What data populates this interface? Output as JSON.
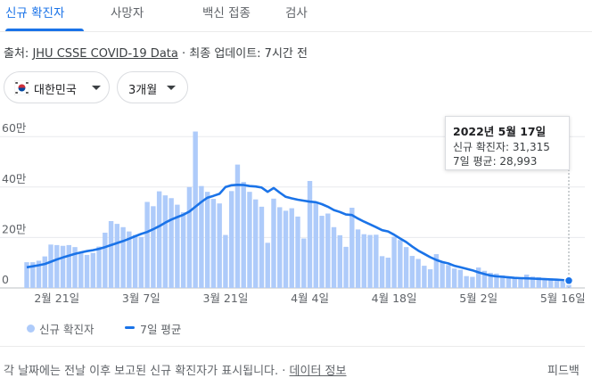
{
  "tabs": [
    {
      "label": "신규 확진자",
      "active": true
    },
    {
      "label": "사망자",
      "active": false
    },
    {
      "label": "백신 접종",
      "active": false
    },
    {
      "label": "검사",
      "active": false
    }
  ],
  "source": {
    "prefix": "출처: ",
    "link_text": "JHU CSSE COVID-19 Data",
    "separator": " · ",
    "updated": "최종 업데이트: 7시간 전"
  },
  "filters": {
    "country": {
      "label": "대한민국",
      "icon": "south-korea-flag-icon"
    },
    "range": {
      "label": "3개월",
      "icon": "caret-down-icon"
    }
  },
  "tooltip": {
    "date": "2022년 5월 17일",
    "cases_line": "신규 확진자: 31,315",
    "avg_line": "7일 평균: 28,993"
  },
  "legend": {
    "cases": "신규 확진자",
    "avg": "7일 평균"
  },
  "footer": {
    "note": "각 날짜에는 전날 이후 보고된 신규 확진자가 표시됩니다.",
    "separator": " · ",
    "info_link": "데이터 정보",
    "feedback": "피드백"
  },
  "colors": {
    "accent": "#1a73e8",
    "bar": "#aecbfa",
    "grid": "#e8eaed"
  },
  "chart_data": {
    "type": "bar",
    "x_start": "2022-02-16",
    "x_end": "2022-05-17",
    "ylim": [
      0,
      620000
    ],
    "y_ticks": [
      0,
      200000,
      400000,
      600000
    ],
    "y_tick_labels": [
      "0",
      "20만",
      "40만",
      "60만"
    ],
    "x_tick_labels": [
      "2월 21일",
      "3월 7일",
      "3월 21일",
      "4월 4일",
      "4월 18일",
      "5월 2일",
      "5월 16일"
    ],
    "grid": true,
    "series": [
      {
        "name": "신규 확진자",
        "values": [
          102000,
          102000,
          108000,
          125000,
          172000,
          170000,
          167000,
          170000,
          162000,
          143000,
          131000,
          139000,
          164000,
          219000,
          265000,
          254000,
          241000,
          224000,
          210000,
          202000,
          341000,
          324000,
          383000,
          367000,
          356000,
          330000,
          300000,
          400000,
          620000,
          404000,
          381000,
          353000,
          335000,
          210000,
          384000,
          489000,
          420000,
          381000,
          351000,
          322000,
          179000,
          354000,
          320000,
          306000,
          316000,
          283000,
          196000,
          424000,
          336000,
          286000,
          295000,
          241000,
          209000,
          163000,
          318000,
          232000,
          213000,
          210000,
          211000,
          126000,
          120000,
          203000,
          190000,
          162000,
          127000,
          115000,
          88000,
          74000,
          134000,
          104000,
          91000,
          77000,
          72000,
          47000,
          44000,
          81000,
          68000,
          60000,
          57000,
          50000,
          40000,
          37000,
          40000,
          53000,
          45000,
          43000,
          36000,
          38000,
          28000,
          25000,
          31315
        ]
      },
      {
        "name": "7일 평균",
        "values": [
          82000,
          86000,
          90000,
          95000,
          104000,
          113000,
          121000,
          128000,
          135000,
          141000,
          146000,
          150000,
          155000,
          162000,
          170000,
          178000,
          186000,
          195000,
          205000,
          214000,
          222000,
          233000,
          245000,
          259000,
          271000,
          281000,
          290000,
          303000,
          322000,
          341000,
          358000,
          365000,
          373000,
          400000,
          407000,
          409000,
          408000,
          404000,
          402000,
          398000,
          381000,
          396000,
          378000,
          361000,
          355000,
          350000,
          346000,
          342000,
          340000,
          332000,
          322000,
          309000,
          301000,
          291000,
          289000,
          275000,
          263000,
          252000,
          241000,
          229000,
          224000,
          211000,
          196000,
          182000,
          164000,
          148000,
          135000,
          122000,
          111000,
          103000,
          97000,
          88000,
          82000,
          76000,
          70000,
          62000,
          55000,
          49000,
          46000,
          44000,
          42000,
          40000,
          39000,
          38000,
          37000,
          36000,
          35000,
          34000,
          33000,
          31000,
          28993
        ]
      }
    ]
  }
}
